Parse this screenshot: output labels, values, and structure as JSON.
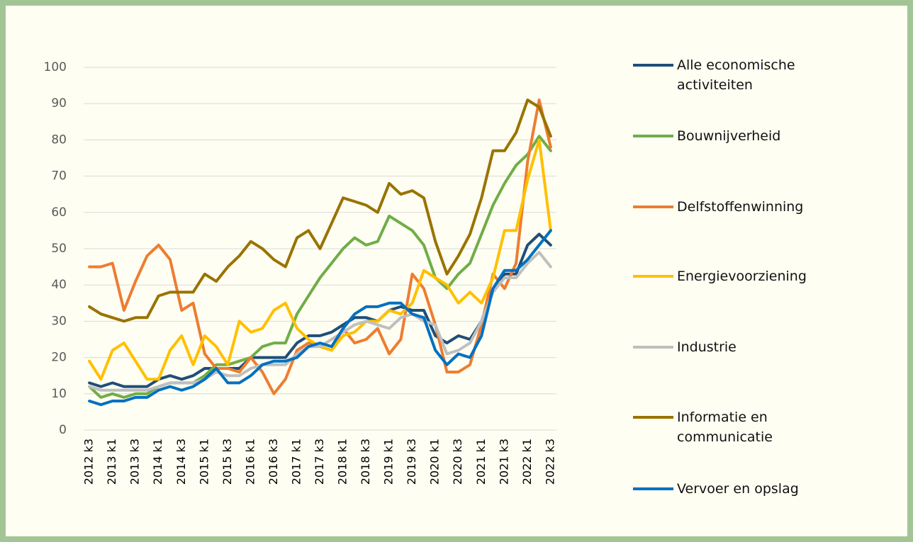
{
  "chart_data": {
    "type": "line",
    "categories": [
      "2012 k3",
      null,
      "2013 k1",
      null,
      "2013 k3",
      null,
      "2014 k1",
      null,
      "2014 k3",
      null,
      "2015 k1",
      null,
      "2015 k3",
      null,
      "2016 k1",
      null,
      "2016 k3",
      null,
      "2017 k1",
      null,
      "2017 k3",
      null,
      "2018 k1",
      null,
      "2018 k3",
      null,
      "2019 k1",
      null,
      "2019 k3",
      null,
      "2020 k1",
      null,
      "2020 k3",
      null,
      "2021 k1",
      null,
      "2021 k3",
      null,
      "2022 k1",
      null,
      "2022 k3"
    ],
    "series": [
      {
        "name": "Alle economische activiteiten",
        "color": "#1f4e79",
        "values": [
          13,
          12,
          13,
          12,
          12,
          12,
          14,
          15,
          14,
          15,
          17,
          17,
          17,
          17,
          20,
          20,
          20,
          20,
          24,
          26,
          26,
          27,
          29,
          31,
          31,
          30,
          33,
          34,
          33,
          33,
          26,
          24,
          26,
          25,
          30,
          39,
          43,
          43,
          51,
          54,
          51
        ]
      },
      {
        "name": "Bouwnijverheid",
        "color": "#70ad47",
        "values": [
          12,
          9,
          10,
          9,
          10,
          10,
          12,
          13,
          13,
          13,
          15,
          18,
          18,
          19,
          20,
          23,
          24,
          24,
          32,
          37,
          42,
          46,
          50,
          53,
          51,
          52,
          59,
          57,
          55,
          51,
          42,
          39,
          43,
          46,
          54,
          62,
          68,
          73,
          76,
          81,
          77
        ]
      },
      {
        "name": "Delfstoffenwinning",
        "color": "#ed7d31",
        "values": [
          45,
          45,
          46,
          33,
          41,
          48,
          51,
          47,
          33,
          35,
          21,
          17,
          17,
          16,
          20,
          16,
          10,
          14,
          22,
          24,
          23,
          22,
          28,
          24,
          25,
          28,
          21,
          25,
          43,
          39,
          29,
          16,
          16,
          18,
          29,
          43,
          39,
          46,
          74,
          91,
          78
        ]
      },
      {
        "name": "Energievoorziening",
        "color": "#ffc000",
        "values": [
          19,
          14,
          22,
          24,
          19,
          14,
          14,
          22,
          26,
          18,
          26,
          23,
          18,
          30,
          27,
          28,
          33,
          35,
          28,
          25,
          23,
          22,
          26,
          27,
          30,
          30,
          33,
          32,
          35,
          44,
          42,
          40,
          35,
          38,
          35,
          42,
          55,
          55,
          69,
          80,
          55
        ]
      },
      {
        "name": "Industrie",
        "color": "#bfbfbf",
        "values": [
          12,
          11,
          11,
          11,
          11,
          11,
          12,
          13,
          13,
          13,
          14,
          16,
          15,
          15,
          17,
          18,
          18,
          18,
          21,
          23,
          23,
          25,
          27,
          29,
          30,
          29,
          28,
          31,
          32,
          30,
          29,
          21,
          22,
          24,
          30,
          38,
          42,
          42,
          46,
          49,
          45
        ]
      },
      {
        "name": "Informatie en communicatie",
        "color": "#997300",
        "values": [
          34,
          32,
          31,
          30,
          31,
          31,
          37,
          38,
          38,
          38,
          43,
          41,
          45,
          48,
          52,
          50,
          47,
          45,
          53,
          55,
          50,
          57,
          64,
          63,
          62,
          60,
          68,
          65,
          66,
          64,
          52,
          43,
          48,
          54,
          64,
          77,
          77,
          82,
          91,
          89,
          81
        ]
      },
      {
        "name": "Vervoer en opslag",
        "color": "#0070c0",
        "values": [
          8,
          7,
          8,
          8,
          9,
          9,
          11,
          12,
          11,
          12,
          14,
          17,
          13,
          13,
          15,
          18,
          19,
          19,
          20,
          23,
          24,
          23,
          28,
          32,
          34,
          34,
          35,
          35,
          32,
          31,
          22,
          18,
          21,
          20,
          26,
          39,
          44,
          44,
          47,
          51,
          55
        ]
      }
    ],
    "ylim": [
      0,
      100
    ],
    "yticks": [
      0,
      10,
      20,
      30,
      40,
      50,
      60,
      70,
      80,
      90,
      100
    ],
    "grid": true,
    "legend": "right"
  }
}
